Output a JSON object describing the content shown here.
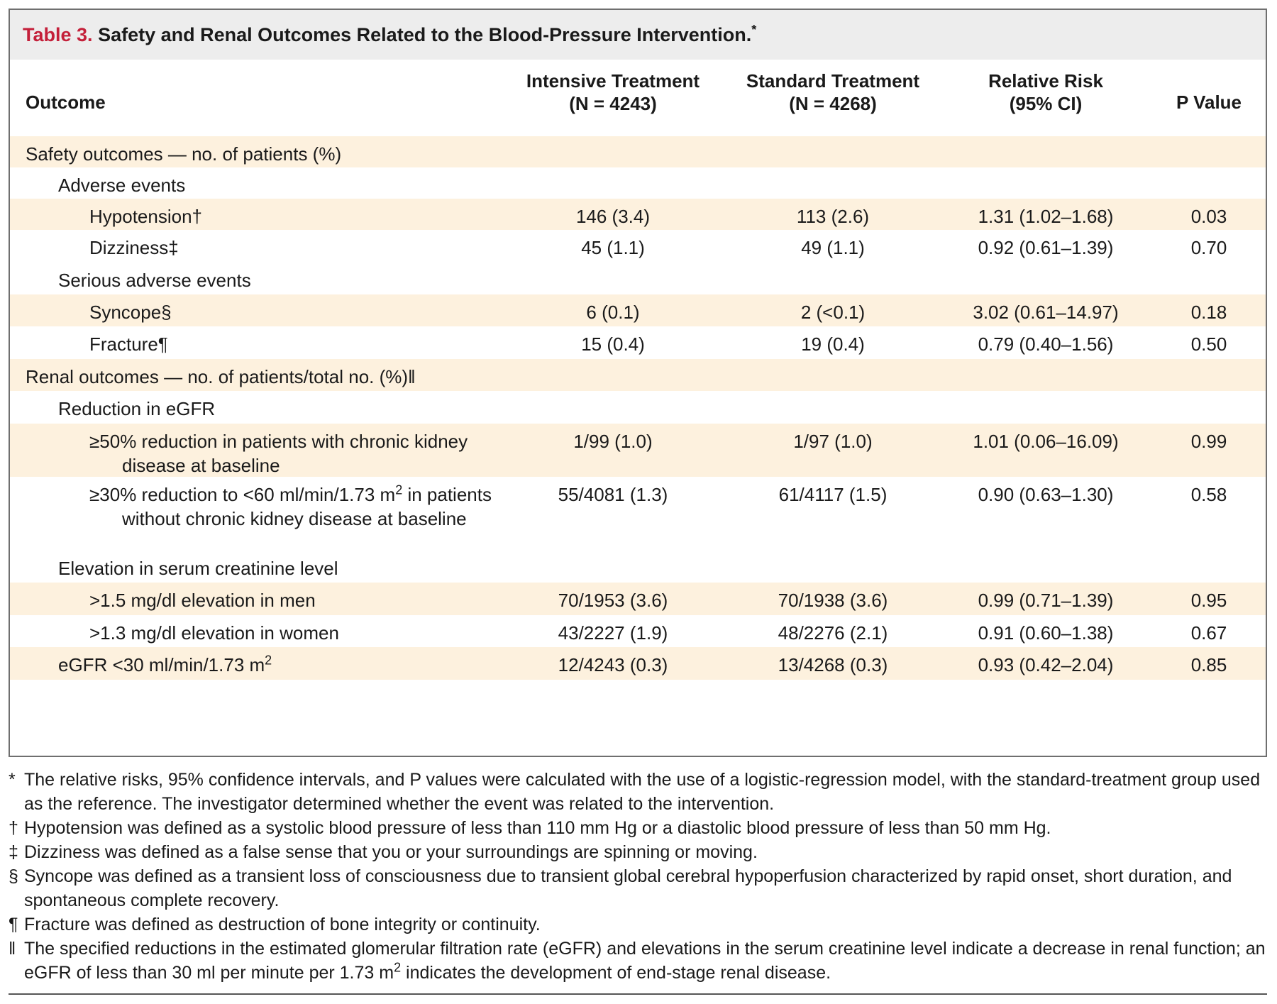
{
  "title": {
    "label": "Table 3.",
    "text": "Safety and Renal Outcomes Related to the Blood-Pressure Intervention.",
    "marker": "*"
  },
  "header": {
    "outcome": "Outcome",
    "intensive_line1": "Intensive Treatment",
    "intensive_line2": "(N = 4243)",
    "standard_line1": "Standard Treatment",
    "standard_line2": "(N = 4268)",
    "rr_line1": "Relative Risk",
    "rr_line2": "(95% CI)",
    "p_value": "P Value"
  },
  "rows": [
    {
      "label": "Safety outcomes — no. of patients (%)",
      "intensive": "",
      "standard": "",
      "rr": "",
      "p": ""
    },
    {
      "label": "Adverse events",
      "intensive": "",
      "standard": "",
      "rr": "",
      "p": ""
    },
    {
      "label": "Hypotension†",
      "intensive": "146 (3.4)",
      "standard": "113 (2.6)",
      "rr": "1.31 (1.02–1.68)",
      "p": "0.03"
    },
    {
      "label": "Dizziness‡",
      "intensive": "45 (1.1)",
      "standard": "49 (1.1)",
      "rr": "0.92 (0.61–1.39)",
      "p": "0.70"
    },
    {
      "label": "Serious adverse events",
      "intensive": "",
      "standard": "",
      "rr": "",
      "p": ""
    },
    {
      "label": "Syncope§",
      "intensive": "6 (0.1)",
      "standard": "2 (<0.1)",
      "rr": "3.02 (0.61–14.97)",
      "p": "0.18"
    },
    {
      "label": "Fracture¶",
      "intensive": "15 (0.4)",
      "standard": "19 (0.4)",
      "rr": "0.79 (0.40–1.56)",
      "p": "0.50"
    },
    {
      "label": "Renal outcomes — no. of patients/total no. (%)‖",
      "intensive": "",
      "standard": "",
      "rr": "",
      "p": ""
    },
    {
      "label": "Reduction in eGFR",
      "intensive": "",
      "standard": "",
      "rr": "",
      "p": ""
    },
    {
      "label": "≥50% reduction in patients with chronic kidney disease at baseline",
      "intensive": "1/99 (1.0)",
      "standard": "1/97 (1.0)",
      "rr": "1.01 (0.06–16.09)",
      "p": "0.99"
    },
    {
      "label_pre": "≥30% reduction to <60 ml/min/1.73 m",
      "label_sup": "2",
      "label_post": " in patients without chronic kidney disease at baseline",
      "intensive": "55/4081 (1.3)",
      "standard": "61/4117 (1.5)",
      "rr": "0.90 (0.63–1.30)",
      "p": "0.58"
    },
    {
      "label": "Elevation in serum creatinine level",
      "intensive": "",
      "standard": "",
      "rr": "",
      "p": ""
    },
    {
      "label": ">1.5 mg/dl elevation in men",
      "intensive": "70/1953 (3.6)",
      "standard": "70/1938 (3.6)",
      "rr": "0.99 (0.71–1.39)",
      "p": "0.95"
    },
    {
      "label": ">1.3 mg/dl elevation in women",
      "intensive": "43/2227 (1.9)",
      "standard": "48/2276 (2.1)",
      "rr": "0.91 (0.60–1.38)",
      "p": "0.67"
    },
    {
      "label_pre": "eGFR <30 ml/min/1.73 m",
      "label_sup": "2",
      "intensive": "12/4243 (0.3)",
      "standard": "13/4268 (0.3)",
      "rr": "0.93 (0.42–2.04)",
      "p": "0.85"
    }
  ],
  "footnotes": [
    {
      "symbol": "*",
      "text": "The relative risks, 95% confidence intervals, and P values were calculated with the use of a logistic-regression model, with the standard-treatment group used as the reference. The investigator determined whether the event was related to the intervention."
    },
    {
      "symbol": "†",
      "text": "Hypotension was defined as a systolic blood pressure of less than 110 mm Hg or a diastolic blood pressure of less than 50 mm Hg."
    },
    {
      "symbol": "‡",
      "text": "Dizziness was defined as a false sense that you or your surroundings are spinning or moving."
    },
    {
      "symbol": "§",
      "text": "Syncope was defined as a transient loss of consciousness due to transient global cerebral hypoperfusion characterized by rapid onset, short duration, and spontaneous complete recovery."
    },
    {
      "symbol": "¶",
      "text": "Fracture was defined as destruction of bone integrity or continuity."
    },
    {
      "symbol": "‖",
      "text_pre": "The specified reductions in the estimated glomerular filtration rate (eGFR) and elevations in the serum creatinine level indicate a decrease in renal function; an eGFR of less than 30 ml per minute per 1.73 m",
      "text_sup": "2",
      "text_post": " indicates the development of end-stage renal disease."
    }
  ],
  "colors": {
    "title_label": "#c4203a",
    "band": "#fdf1de",
    "title_bar": "#ededed",
    "border": "#6f6f6f"
  }
}
